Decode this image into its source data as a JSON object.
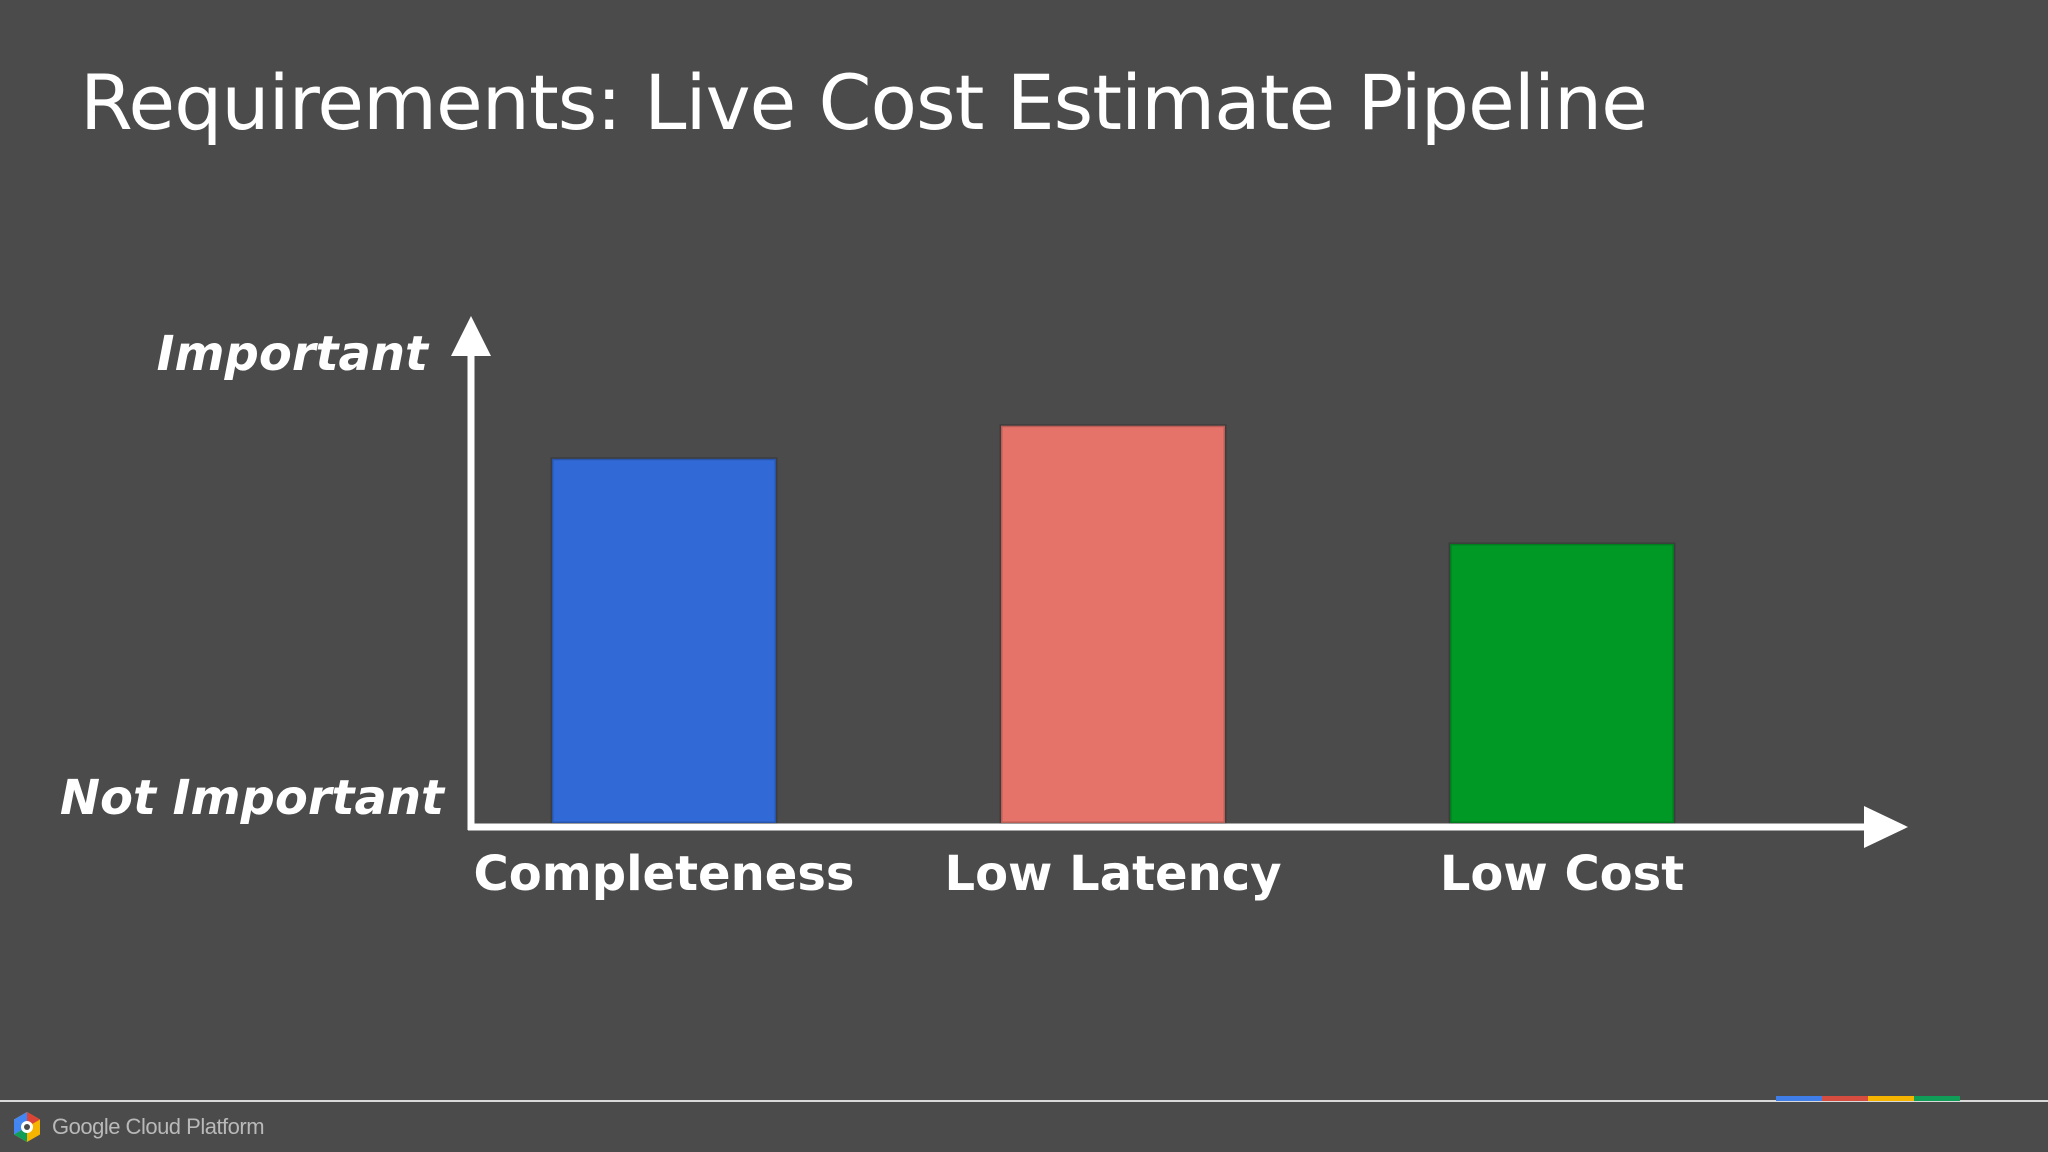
{
  "slide": {
    "title": "Requirements: Live Cost Estimate Pipeline"
  },
  "chart_data": {
    "type": "bar",
    "categories": [
      "Completeness",
      "Low Latency",
      "Low Cost"
    ],
    "values": [
      0.77,
      0.84,
      0.59
    ],
    "colors": [
      "#3169d6",
      "#e6736a",
      "#009926"
    ],
    "y_axis": {
      "top_label": "Important",
      "bottom_label": "Not Important",
      "ylim": [
        0,
        1
      ]
    },
    "grid": false,
    "legend": "none"
  },
  "footer": {
    "brand": "Google Cloud Platform",
    "logo_icon": "google-cloud-logo-icon",
    "strip_colors": [
      "#3f7ee8",
      "#d64c3f",
      "#f4b400",
      "#0f9d58"
    ]
  }
}
